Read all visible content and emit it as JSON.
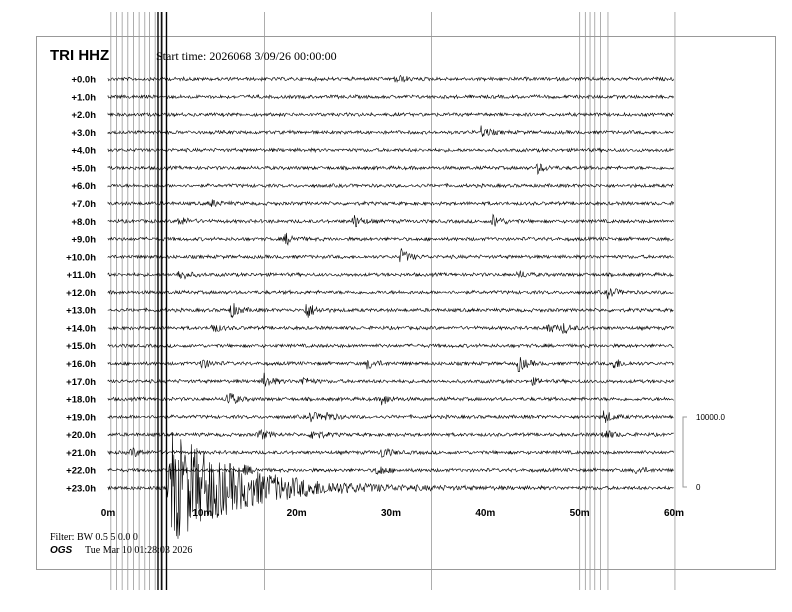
{
  "header": {
    "station": "TRI HHZ",
    "start_time": "Start time: 2026068  3/09/26 00:00:00"
  },
  "footer": {
    "filter": "Filter: BW 0.5 5 0.0 0",
    "agency": "OGS",
    "timestamp": "Tue Mar 10 01:28:03 2026"
  },
  "chart_data": {
    "type": "line",
    "title": "TRI HHZ",
    "subtitle": "Start time: 2026068  3/09/26 00:00:00",
    "row_labels": [
      "+0.0h",
      "+1.0h",
      "+2.0h",
      "+3.0h",
      "+4.0h",
      "+5.0h",
      "+6.0h",
      "+7.0h",
      "+8.0h",
      "+9.0h",
      "+10.0h",
      "+11.0h",
      "+12.0h",
      "+13.0h",
      "+14.0h",
      "+15.0h",
      "+16.0h",
      "+17.0h",
      "+18.0h",
      "+19.0h",
      "+20.0h",
      "+21.0h",
      "+22.0h",
      "+23.0h"
    ],
    "x_ticks": [
      "0m",
      "10m",
      "20m",
      "30m",
      "40m",
      "50m",
      "60m"
    ],
    "x_range_minutes": [
      0,
      60
    ],
    "scale": {
      "top": "10000.0",
      "bottom": "0"
    },
    "trace_color": "#000000",
    "glitch_color": "#999999",
    "events": [
      {
        "hour": 0,
        "minute": 30.5,
        "amp": 5
      },
      {
        "hour": 3,
        "minute": 39.5,
        "amp": 6
      },
      {
        "hour": 5,
        "minute": 45.5,
        "amp": 5
      },
      {
        "hour": 7,
        "minute": 10.8,
        "amp": 4
      },
      {
        "hour": 8,
        "minute": 7.5,
        "amp": 5
      },
      {
        "hour": 8,
        "minute": 26,
        "amp": 7
      },
      {
        "hour": 8,
        "minute": 40.8,
        "amp": 7
      },
      {
        "hour": 9,
        "minute": 18.8,
        "amp": 6
      },
      {
        "hour": 10,
        "minute": 31,
        "amp": 8
      },
      {
        "hour": 11,
        "minute": 7.5,
        "amp": 6
      },
      {
        "hour": 11,
        "minute": 43.5,
        "amp": 4
      },
      {
        "hour": 12,
        "minute": 53,
        "amp": 6
      },
      {
        "hour": 13,
        "minute": 13,
        "amp": 8
      },
      {
        "hour": 13,
        "minute": 21,
        "amp": 9
      },
      {
        "hour": 14,
        "minute": 11,
        "amp": 5
      },
      {
        "hour": 14,
        "minute": 46.5,
        "amp": 6
      },
      {
        "hour": 14,
        "minute": 48.2,
        "amp": 5
      },
      {
        "hour": 16,
        "minute": 9.8,
        "amp": 6
      },
      {
        "hour": 16,
        "minute": 27.5,
        "amp": 6
      },
      {
        "hour": 16,
        "minute": 43.5,
        "amp": 8
      },
      {
        "hour": 16,
        "minute": 53.5,
        "amp": 6
      },
      {
        "hour": 17,
        "minute": 16.5,
        "amp": 8
      },
      {
        "hour": 17,
        "minute": 20.5,
        "amp": 5
      },
      {
        "hour": 17,
        "minute": 45,
        "amp": 3
      },
      {
        "hour": 18,
        "minute": 12.6,
        "amp": 9
      },
      {
        "hour": 18,
        "minute": 29,
        "amp": 6
      },
      {
        "hour": 19,
        "minute": 21.4,
        "amp": 6
      },
      {
        "hour": 19,
        "minute": 23,
        "amp": 5
      },
      {
        "hour": 19,
        "minute": 52.5,
        "amp": 7
      },
      {
        "hour": 20,
        "minute": 16,
        "amp": 6
      },
      {
        "hour": 20,
        "minute": 21.6,
        "amp": 7
      },
      {
        "hour": 20,
        "minute": 52.5,
        "amp": 6
      },
      {
        "hour": 21,
        "minute": 2.5,
        "amp": 5
      },
      {
        "hour": 21,
        "minute": 29,
        "amp": 6
      },
      {
        "hour": 22,
        "minute": 14.5,
        "amp": 5
      },
      {
        "hour": 22,
        "minute": 28.5,
        "amp": 6
      },
      {
        "hour": 22,
        "minute": 56,
        "amp": 4
      },
      {
        "hour": 23,
        "minute": 6.5,
        "amp": 60,
        "coda": 7
      }
    ],
    "glitch_minutes": [
      0.3,
      0.9,
      1.5,
      2.1,
      2.7,
      3.3,
      3.9,
      4.4,
      5.0,
      5.6,
      16.6,
      34.3,
      50.0,
      50.6,
      51.1,
      51.6,
      52.2,
      53.0,
      60.1
    ],
    "spike_minutes": [
      5.3,
      5.7,
      6.2
    ]
  }
}
